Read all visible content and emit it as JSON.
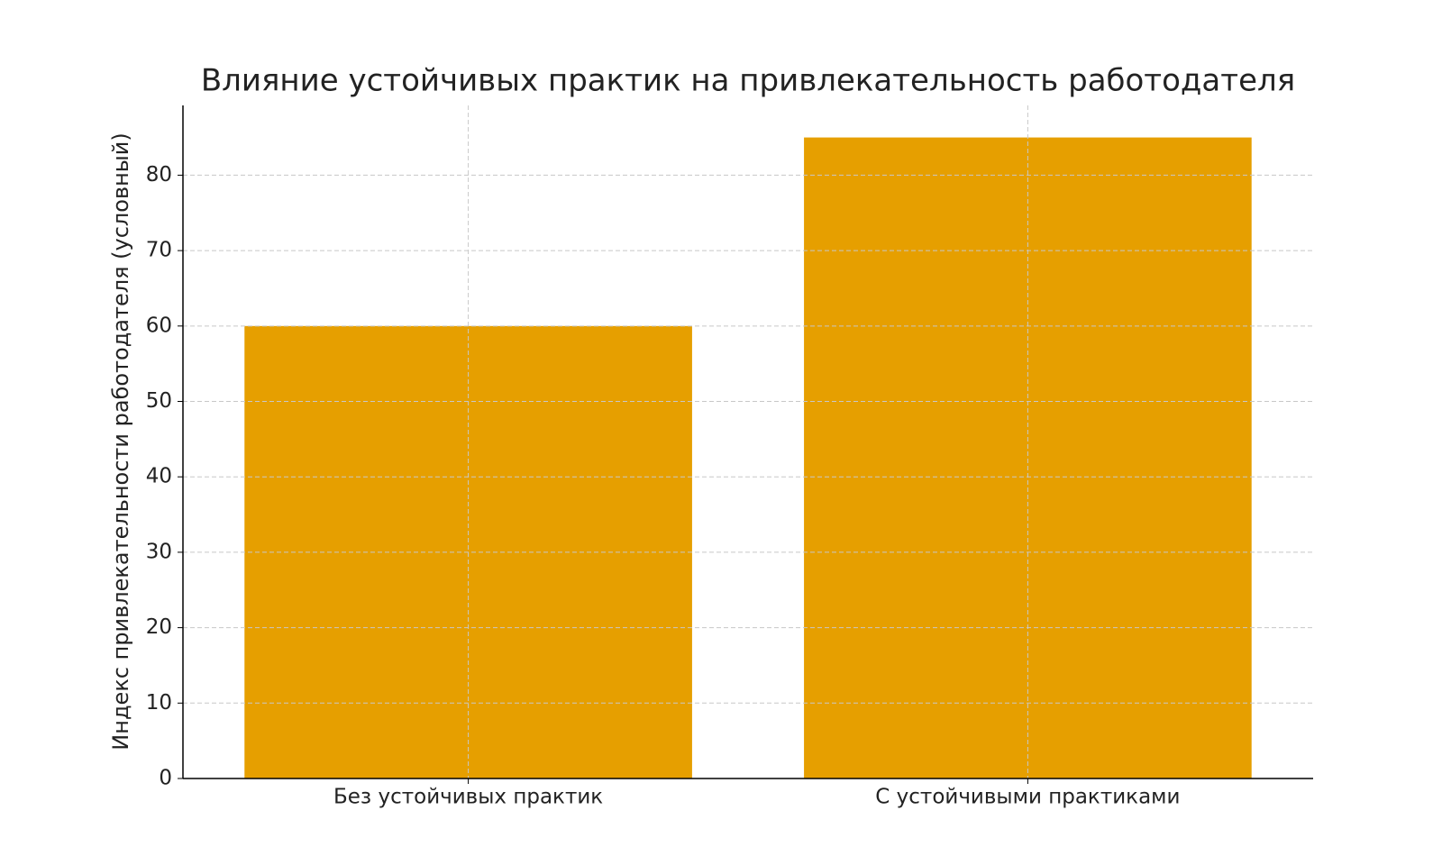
{
  "chart_data": {
    "type": "bar",
    "title": "Влияние устойчивых практик на привлекательность работодателя",
    "y_label": "Индекс привлекательности работодателя (условный)",
    "categories": [
      "Без устойчивых практик",
      "С устойчивыми практиками"
    ],
    "values": [
      60,
      85
    ],
    "color": "#e69f00",
    "ylim": [
      0,
      89.25
    ],
    "yticks": [
      0,
      10,
      20,
      30,
      40,
      50,
      60,
      70,
      80
    ],
    "grid": true
  }
}
